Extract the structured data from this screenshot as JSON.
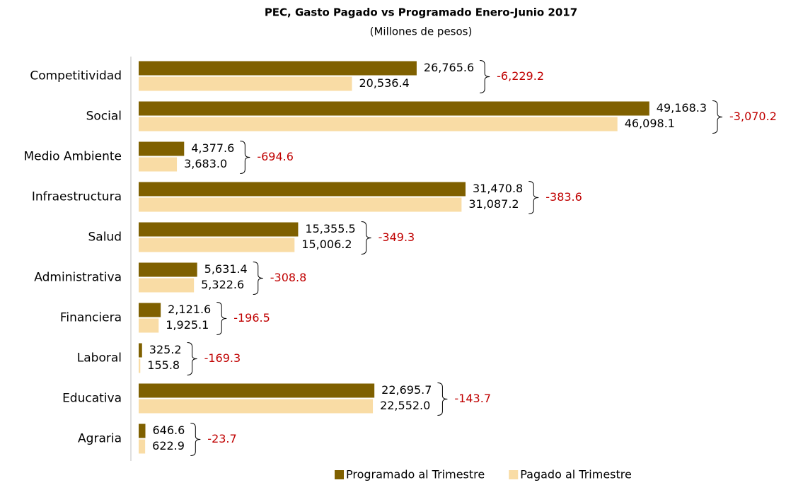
{
  "chart_data": {
    "type": "bar",
    "orientation": "horizontal",
    "title": "PEC, Gasto Pagado vs Programado Enero-Junio 2017",
    "subtitle": "(Millones de pesos)",
    "categories": [
      "Competitividad",
      "Social",
      "Medio Ambiente",
      "Infraestructura",
      "Salud",
      "Administrativa",
      "Financiera",
      "Laboral",
      "Educativa",
      "Agraria"
    ],
    "series": [
      {
        "name": "Programado al Trimestre",
        "color": "#7f6000",
        "values": [
          26765.6,
          49168.3,
          4377.6,
          31470.8,
          15355.5,
          5631.4,
          2121.6,
          325.2,
          22695.7,
          646.6
        ],
        "value_labels": [
          "26,765.6",
          "49,168.3",
          "4,377.6",
          "31,470.8",
          "15,355.5",
          "5,631.4",
          "2,121.6",
          "325.2",
          "22,695.7",
          "646.6"
        ]
      },
      {
        "name": "Pagado al Trimestre",
        "color": "#f9dca5",
        "values": [
          20536.4,
          46098.1,
          3683.0,
          31087.2,
          15006.2,
          5322.6,
          1925.1,
          155.8,
          22552.0,
          622.9
        ],
        "value_labels": [
          "20,536.4",
          "46,098.1",
          "3,683.0",
          "31,087.2",
          "15,006.2",
          "5,322.6",
          "1,925.1",
          "155.8",
          "22,552.0",
          "622.9"
        ]
      }
    ],
    "differences": [
      {
        "value": -6229.2,
        "label": "-6,229.2"
      },
      {
        "value": -3070.2,
        "label": "-3,070.2"
      },
      {
        "value": -694.6,
        "label": "-694.6"
      },
      {
        "value": -383.6,
        "label": "-383.6"
      },
      {
        "value": -349.3,
        "label": "-349.3"
      },
      {
        "value": -308.8,
        "label": "-308.8"
      },
      {
        "value": -196.5,
        "label": "-196.5"
      },
      {
        "value": -169.3,
        "label": "-169.3"
      },
      {
        "value": -143.7,
        "label": "-143.7"
      },
      {
        "value": -23.7,
        "label": "-23.7"
      }
    ],
    "difference_color": "#c00000",
    "xlim": [
      0,
      50000
    ],
    "legend": "bottom"
  }
}
